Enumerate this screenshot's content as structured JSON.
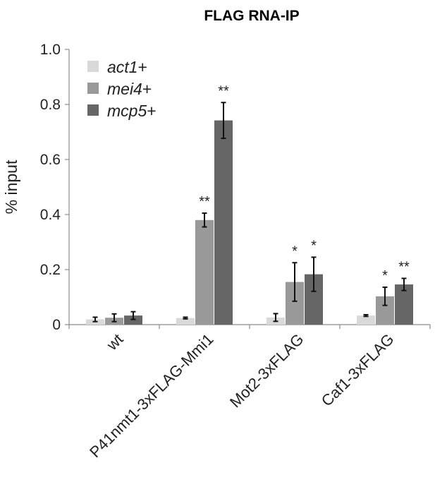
{
  "chart_data": {
    "type": "bar",
    "title": "FLAG RNA-IP",
    "xlabel": "",
    "ylabel": "% input",
    "ylim": [
      0,
      1.0
    ],
    "yticks": [
      "0",
      "0.2",
      "0.4",
      "0.6",
      "0.8",
      "1.0"
    ],
    "ytick_values": [
      0,
      0.2,
      0.4,
      0.6,
      0.8,
      1.0
    ],
    "grid": false,
    "legend_position": "top-left",
    "categories": [
      "wt",
      "P41nmt1-3xFLAG-Mmi1",
      "Mot2-3xFLAG",
      "Caf1-3xFLAG"
    ],
    "series": [
      {
        "name": "act1+",
        "name_italic": "act1",
        "name_suffix": "+",
        "color": "#d9d9d9",
        "values": [
          0.019,
          0.024,
          0.026,
          0.033
        ],
        "errors": [
          0.008,
          0.003,
          0.014,
          0.003
        ],
        "significance": [
          "",
          "",
          "",
          ""
        ]
      },
      {
        "name": "mei4+",
        "name_italic": "mei4",
        "name_suffix": "+",
        "color": "#999999",
        "values": [
          0.025,
          0.38,
          0.155,
          0.103
        ],
        "errors": [
          0.014,
          0.025,
          0.07,
          0.033
        ],
        "significance": [
          "",
          "**",
          "*",
          "*"
        ]
      },
      {
        "name": "mcp5+",
        "name_italic": "mcp5",
        "name_suffix": "+",
        "color": "#666666",
        "values": [
          0.033,
          0.742,
          0.183,
          0.146
        ],
        "errors": [
          0.014,
          0.065,
          0.062,
          0.022
        ],
        "significance": [
          "",
          "**",
          "*",
          "**"
        ]
      }
    ]
  }
}
